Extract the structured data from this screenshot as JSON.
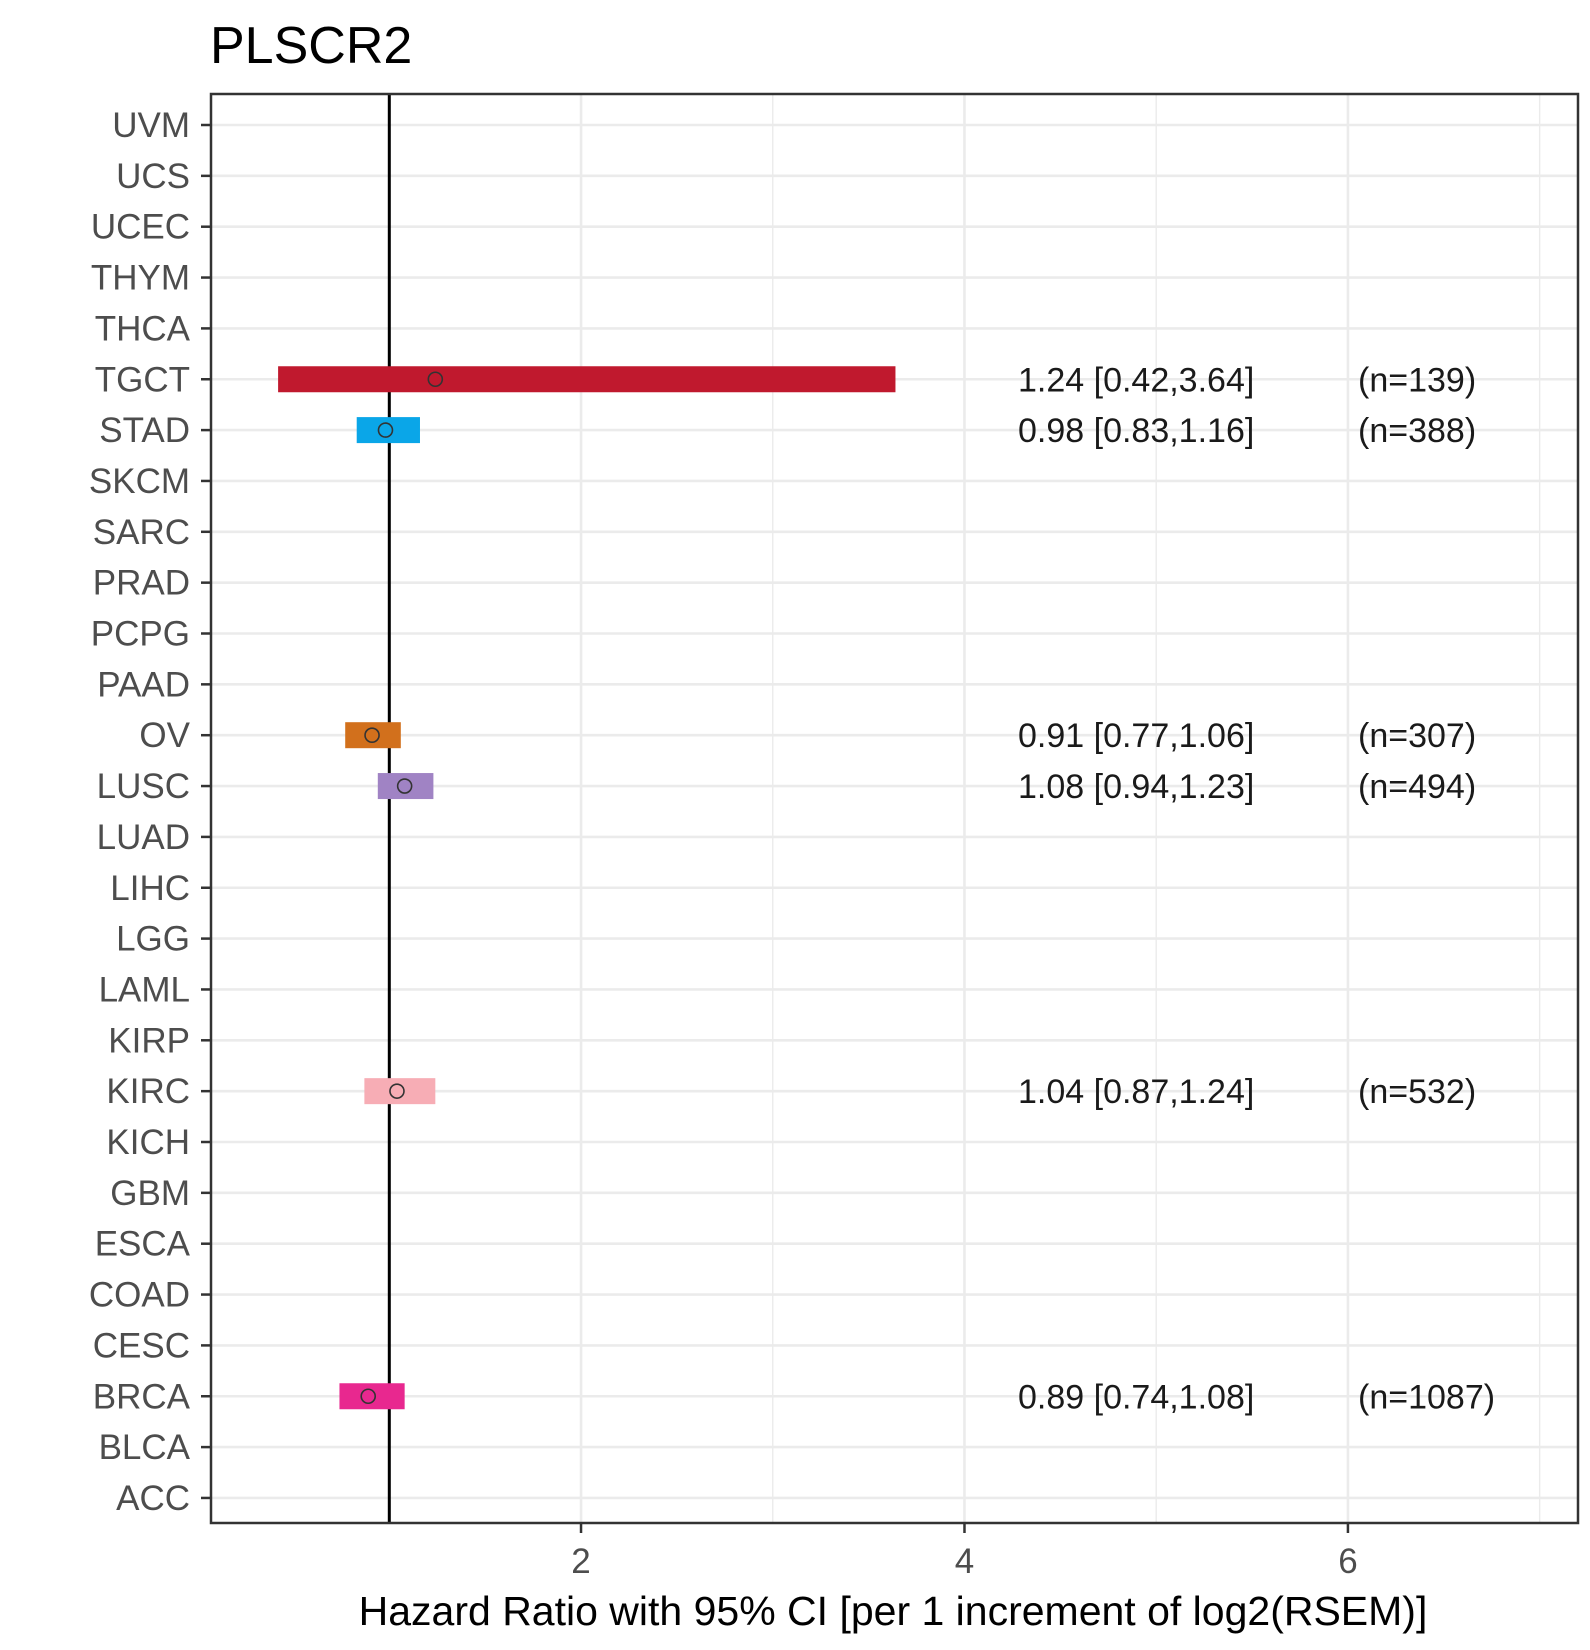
{
  "chart_data": {
    "type": "forest",
    "title": "PLSCR2",
    "xlabel": "Hazard Ratio with 95% CI [per 1 increment of log2(RSEM)]",
    "ylabel": "",
    "xlim": [
      0.07,
      7.2
    ],
    "xticks": [
      2,
      4,
      6
    ],
    "grid": true,
    "reference_line": 1,
    "categories": [
      "UVM",
      "UCS",
      "UCEC",
      "THYM",
      "THCA",
      "TGCT",
      "STAD",
      "SKCM",
      "SARC",
      "PRAD",
      "PCPG",
      "PAAD",
      "OV",
      "LUSC",
      "LUAD",
      "LIHC",
      "LGG",
      "LAML",
      "KIRP",
      "KIRC",
      "KICH",
      "GBM",
      "ESCA",
      "COAD",
      "CESC",
      "BRCA",
      "BLCA",
      "ACC"
    ],
    "points": [
      {
        "category": "TGCT",
        "hr": 1.24,
        "lower": 0.42,
        "upper": 3.64,
        "label": "1.24 [0.42,3.64]",
        "n": "(n=139)",
        "color": "#c0192e"
      },
      {
        "category": "STAD",
        "hr": 0.98,
        "lower": 0.83,
        "upper": 1.16,
        "label": "0.98 [0.83,1.16]",
        "n": "(n=388)",
        "color": "#0aa6e8"
      },
      {
        "category": "OV",
        "hr": 0.91,
        "lower": 0.77,
        "upper": 1.06,
        "label": "0.91 [0.77,1.06]",
        "n": "(n=307)",
        "color": "#d2701c"
      },
      {
        "category": "LUSC",
        "hr": 1.08,
        "lower": 0.94,
        "upper": 1.23,
        "label": "1.08 [0.94,1.23]",
        "n": "(n=494)",
        "color": "#a083c4"
      },
      {
        "category": "KIRC",
        "hr": 1.04,
        "lower": 0.87,
        "upper": 1.24,
        "label": "1.04 [0.87,1.24]",
        "n": "(n=532)",
        "color": "#f7adb5"
      },
      {
        "category": "BRCA",
        "hr": 0.89,
        "lower": 0.74,
        "upper": 1.08,
        "label": "0.89 [0.74,1.08]",
        "n": "(n=1087)",
        "color": "#e8288f"
      }
    ]
  }
}
